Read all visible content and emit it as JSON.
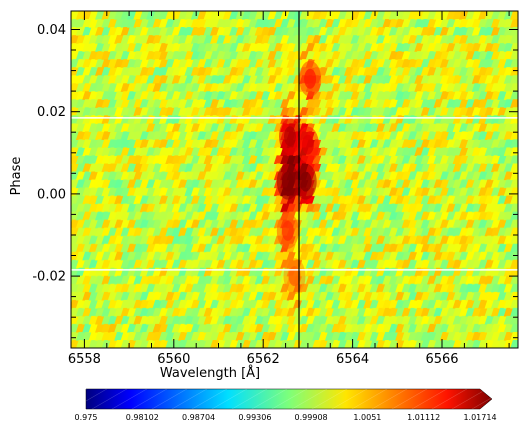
{
  "chart_data": {
    "type": "heatmap",
    "xlabel": "Wavelength [Å]",
    "ylabel": "Phase",
    "xlim": [
      6557.7,
      6567.7
    ],
    "ylim": [
      -0.0375,
      0.0445
    ],
    "x_ticks": [
      6558,
      6560,
      6562,
      6564,
      6566
    ],
    "x_tick_labels": [
      "6558",
      "6560",
      "6562",
      "6564",
      "6566"
    ],
    "y_ticks": [
      0.04,
      0.02,
      0.0,
      -0.02
    ],
    "y_tick_labels": [
      "0.04",
      "0.02",
      "0.00",
      "-0.02"
    ],
    "x_minor_step": 0.5,
    "y_minor_step": 0.005,
    "vertical_line_x": 6562.8,
    "horizontal_lines_phase": [
      0.0185,
      -0.0185
    ],
    "colorbar": {
      "min": 0.975,
      "max": 1.01714,
      "tick_values": [
        0.975,
        0.98102,
        0.98704,
        0.99306,
        0.99908,
        1.0051,
        1.01112,
        1.01714
      ],
      "tick_labels": [
        "0.975",
        "0.98102",
        "0.98704",
        "0.99306",
        "0.99908",
        "1.0051",
        "1.01112",
        "1.01714"
      ],
      "colormap": "jet",
      "extend": "max"
    },
    "background_level": 0.9995,
    "features": [
      {
        "wavelength": 6562.55,
        "phase": 0.003,
        "level": 1.0165
      },
      {
        "wavelength": 6562.95,
        "phase": 0.003,
        "level": 1.0155
      },
      {
        "wavelength": 6562.6,
        "phase": 0.014,
        "level": 1.013
      },
      {
        "wavelength": 6563.0,
        "phase": 0.012,
        "level": 1.011
      },
      {
        "wavelength": 6563.05,
        "phase": 0.028,
        "level": 1.009
      },
      {
        "wavelength": 6562.55,
        "phase": -0.009,
        "level": 1.008
      },
      {
        "wavelength": 6562.7,
        "phase": -0.02,
        "level": 1.006
      }
    ]
  }
}
